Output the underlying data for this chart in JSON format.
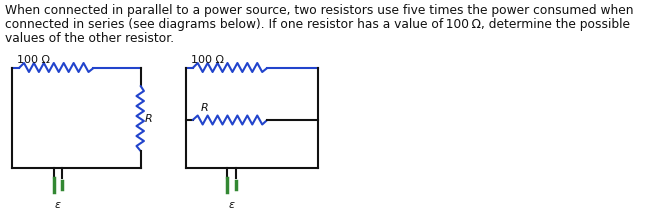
{
  "text_line1": "When connected in parallel to a power source, two resistors use five times the power consumed when",
  "text_line2": "connected in series (see diagrams below). If one resistor has a value of 100 Ω, determine the possible",
  "text_line3": "values of the other resistor.",
  "circuit1_label_top": "100 Ω",
  "circuit2_label_top": "100 Ω",
  "label_R": "R",
  "label_epsilon": "ε",
  "wire_color": "#2244cc",
  "green_color": "#338833",
  "black_color": "#111111",
  "text_color": "#111111",
  "bg_color": "#ffffff",
  "font_size": 8.8,
  "small_font": 8.0
}
